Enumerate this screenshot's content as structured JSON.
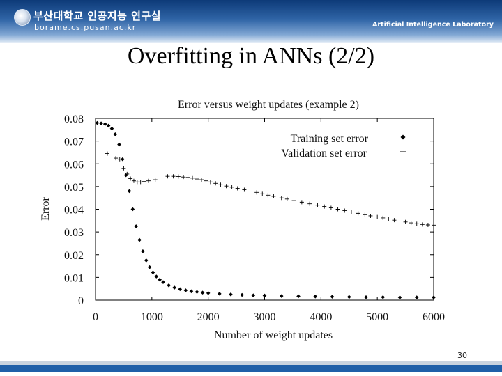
{
  "header": {
    "org_name": "부산대학교 인공지능 연구실",
    "org_url": "borame.cs.pusan.ac.kr",
    "lab_name": "Artificial Intelligence Laboratory"
  },
  "slide": {
    "title": "Overfitting in ANNs (2/2)",
    "page_number": "30"
  },
  "chart_data": {
    "type": "scatter",
    "title": "Error versus weight updates (example 2)",
    "xlabel": "Number of weight updates",
    "ylabel": "Error",
    "xlim": [
      0,
      6000
    ],
    "ylim": [
      0,
      0.08
    ],
    "xticks": [
      0,
      1000,
      2000,
      3000,
      4000,
      5000,
      6000
    ],
    "yticks": [
      0,
      0.01,
      0.02,
      0.03,
      0.04,
      0.05,
      0.06,
      0.07,
      0.08
    ],
    "xtick_labels": [
      "0",
      "1000",
      "2000",
      "3000",
      "4000",
      "5000",
      "6000"
    ],
    "ytick_labels": [
      "0",
      "0.01",
      "0.02",
      "0.03",
      "0.04",
      "0.05",
      "0.06",
      "0.07",
      "0.08"
    ],
    "grid": false,
    "legend_position": "top-right",
    "series": [
      {
        "name": "Training set error",
        "marker": "diamond",
        "x": [
          30,
          100,
          170,
          230,
          290,
          350,
          420,
          480,
          540,
          600,
          660,
          720,
          780,
          840,
          900,
          960,
          1020,
          1080,
          1140,
          1200,
          1300,
          1400,
          1500,
          1600,
          1700,
          1800,
          1900,
          2000,
          2200,
          2400,
          2600,
          2800,
          3000,
          3300,
          3600,
          3900,
          4200,
          4500,
          4800,
          5100,
          5400,
          5700,
          6000
        ],
        "y": [
          0.078,
          0.0778,
          0.0775,
          0.0768,
          0.0755,
          0.073,
          0.0685,
          0.062,
          0.055,
          0.048,
          0.04,
          0.0325,
          0.0265,
          0.0215,
          0.0175,
          0.0145,
          0.0122,
          0.0104,
          0.009,
          0.0079,
          0.0065,
          0.0055,
          0.0048,
          0.0043,
          0.0039,
          0.0036,
          0.0033,
          0.0031,
          0.0028,
          0.0025,
          0.0023,
          0.0021,
          0.002,
          0.0018,
          0.0017,
          0.0016,
          0.0015,
          0.0014,
          0.0013,
          0.0013,
          0.0012,
          0.0012,
          0.0012
        ]
      },
      {
        "name": "Validation set error",
        "marker": "plus",
        "x": [
          210,
          360,
          430,
          500,
          560,
          620,
          680,
          740,
          800,
          860,
          940,
          1060,
          1280,
          1380,
          1470,
          1560,
          1640,
          1720,
          1800,
          1880,
          1960,
          2040,
          2130,
          2220,
          2320,
          2420,
          2520,
          2640,
          2740,
          2860,
          2960,
          3060,
          3160,
          3300,
          3400,
          3520,
          3660,
          3800,
          3940,
          4060,
          4180,
          4300,
          4420,
          4540,
          4660,
          4780,
          4880,
          5000,
          5100,
          5200,
          5300,
          5400,
          5500,
          5600,
          5700,
          5800,
          5900,
          6000
        ],
        "y": [
          0.0645,
          0.0625,
          0.062,
          0.058,
          0.0555,
          0.0535,
          0.0525,
          0.052,
          0.052,
          0.0522,
          0.0525,
          0.053,
          0.0545,
          0.0545,
          0.0544,
          0.0542,
          0.054,
          0.0537,
          0.0533,
          0.053,
          0.0525,
          0.052,
          0.0514,
          0.0508,
          0.0502,
          0.0497,
          0.0492,
          0.0486,
          0.048,
          0.0474,
          0.0468,
          0.0462,
          0.0457,
          0.045,
          0.0445,
          0.0438,
          0.0431,
          0.0424,
          0.0418,
          0.0412,
          0.0406,
          0.04,
          0.0394,
          0.0388,
          0.0382,
          0.0376,
          0.0371,
          0.0366,
          0.0362,
          0.0357,
          0.0352,
          0.0348,
          0.0344,
          0.034,
          0.0336,
          0.0333,
          0.0331,
          0.033
        ]
      }
    ]
  }
}
